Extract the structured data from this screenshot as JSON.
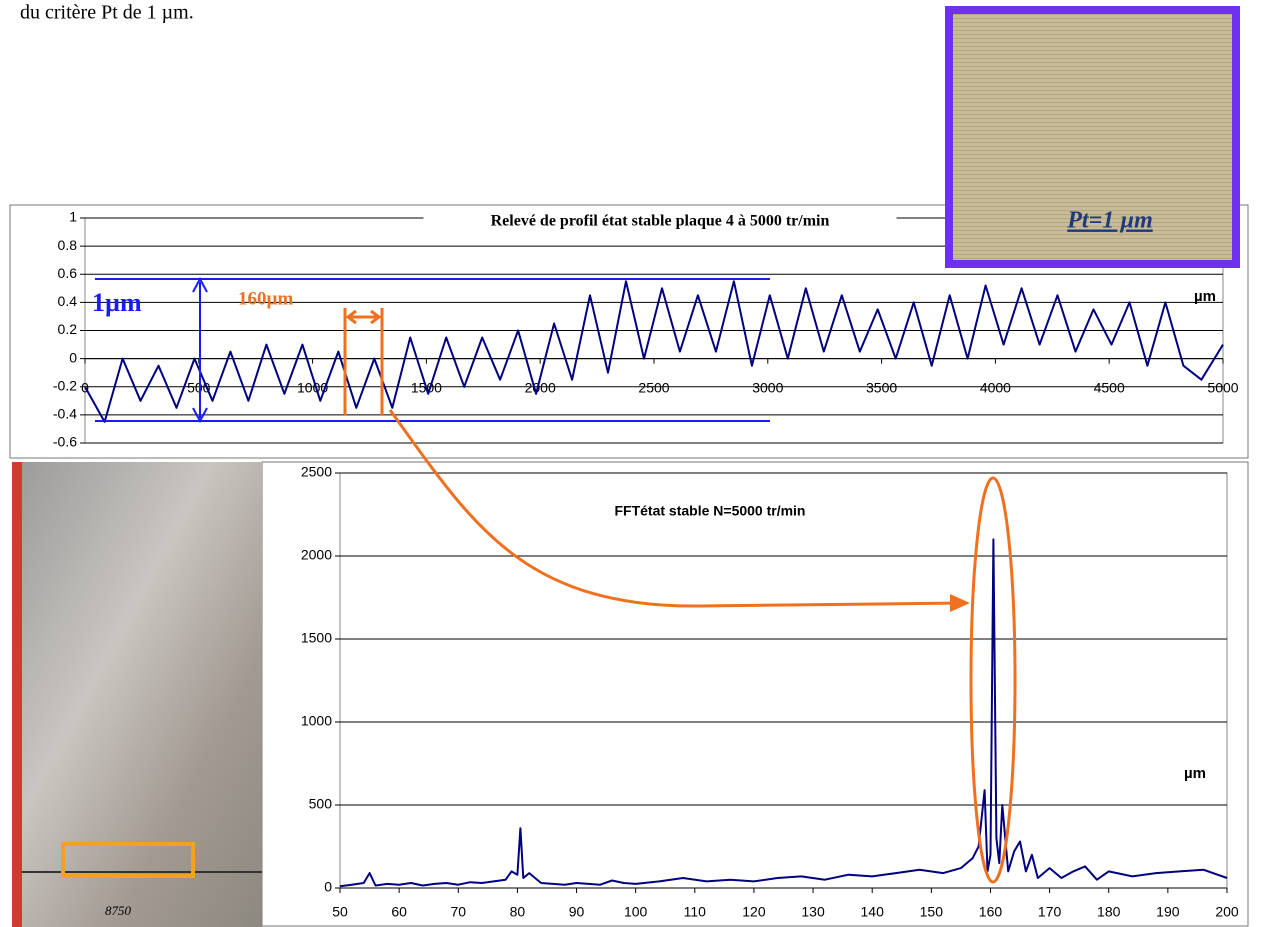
{
  "text": "du critère Pt de 1 µm.",
  "photo_label": "Pt=1 µm",
  "photo_caption": "8750",
  "chart_data": [
    {
      "type": "line",
      "title": "Relevé de profil état stable plaque 4 à 5000 tr/min",
      "x_label": "µm",
      "annotations": [
        "1µm",
        "160µm"
      ],
      "x": [
        0,
        86,
        165,
        244,
        323,
        402,
        481,
        560,
        639,
        718,
        797,
        876,
        955,
        1034,
        1113,
        1192,
        1271,
        1350,
        1429,
        1508,
        1587,
        1666,
        1745,
        1824,
        1903,
        1982,
        2061,
        2140,
        2219,
        2298,
        2377,
        2456,
        2535,
        2614,
        2693,
        2772,
        2851,
        2930,
        3009,
        3088,
        3167,
        3246,
        3325,
        3404,
        3483,
        3562,
        3641,
        3720,
        3799,
        3878,
        3957,
        4036,
        4115,
        4194,
        4273,
        4352,
        4431,
        4510,
        4589,
        4668,
        4747,
        4826,
        4905,
        5000
      ],
      "series": [
        {
          "color": "#000080",
          "values": [
            -0.2,
            -0.45,
            0,
            -0.3,
            -0.05,
            -0.35,
            0,
            -0.3,
            0.05,
            -0.3,
            0.1,
            -0.25,
            0.1,
            -0.3,
            0.05,
            -0.35,
            0,
            -0.35,
            0.15,
            -0.25,
            0.15,
            -0.2,
            0.15,
            -0.15,
            0.2,
            -0.25,
            0.25,
            -0.15,
            0.45,
            -0.1,
            0.55,
            0,
            0.5,
            0.05,
            0.45,
            0.05,
            0.55,
            -0.05,
            0.45,
            0,
            0.5,
            0.05,
            0.45,
            0.05,
            0.35,
            0,
            0.4,
            -0.05,
            0.45,
            0,
            0.52,
            0.1,
            0.5,
            0.1,
            0.45,
            0.05,
            0.35,
            0.1,
            0.4,
            -0.05,
            0.4,
            -0.05,
            -0.15,
            0.1
          ]
        }
      ],
      "xlim": [
        0,
        5000
      ],
      "xticks": [
        0,
        500,
        1000,
        1500,
        2000,
        2500,
        3000,
        3500,
        4000,
        4500,
        5000
      ],
      "ylim": [
        -0.6,
        1
      ],
      "yticks": [
        1,
        0.8,
        0.6,
        0.4,
        0.2,
        0,
        -0.2,
        -0.4,
        -0.6
      ],
      "grid": true
    },
    {
      "type": "line",
      "title": "FFTétat stable N=5000 tr/min",
      "x_label": "µm",
      "x": [
        50,
        52,
        54,
        55,
        56,
        58,
        60,
        62,
        64,
        66,
        68,
        70,
        72,
        74,
        76,
        78,
        79,
        80,
        80.5,
        81,
        82,
        84,
        86,
        88,
        90,
        92,
        94,
        96,
        98,
        100,
        104,
        108,
        112,
        116,
        120,
        124,
        128,
        132,
        136,
        140,
        144,
        148,
        152,
        155,
        157,
        158,
        159,
        159.5,
        160,
        160.5,
        161,
        161.5,
        162,
        163,
        164,
        165,
        166,
        167,
        168,
        170,
        172,
        174,
        176,
        178,
        180,
        184,
        188,
        192,
        196,
        200
      ],
      "series": [
        {
          "color": "#000080",
          "values": [
            10,
            20,
            30,
            90,
            15,
            25,
            20,
            30,
            15,
            25,
            30,
            20,
            35,
            30,
            40,
            50,
            100,
            80,
            360,
            60,
            90,
            30,
            25,
            20,
            30,
            25,
            20,
            45,
            30,
            25,
            40,
            60,
            40,
            50,
            40,
            60,
            70,
            50,
            80,
            70,
            90,
            110,
            90,
            120,
            180,
            250,
            590,
            100,
            200,
            2100,
            300,
            150,
            500,
            100,
            220,
            280,
            100,
            200,
            60,
            120,
            60,
            100,
            130,
            50,
            100,
            70,
            90,
            100,
            110,
            60
          ]
        }
      ],
      "xlim": [
        50,
        200
      ],
      "xticks": [
        50,
        60,
        70,
        80,
        90,
        100,
        110,
        120,
        130,
        140,
        150,
        160,
        170,
        180,
        190,
        200
      ],
      "ylim": [
        0,
        2500
      ],
      "yticks": [
        0,
        500,
        1000,
        1500,
        2000,
        2500
      ],
      "grid": true
    }
  ]
}
